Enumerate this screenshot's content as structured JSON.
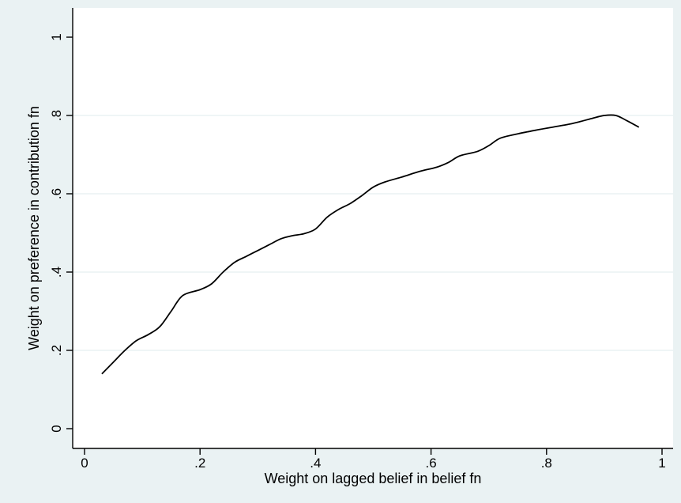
{
  "chart_data": {
    "type": "line",
    "title": "",
    "xlabel": "Weight on lagged belief in belief fn",
    "ylabel": "Weight on preference in contribution fn",
    "xlim": [
      0,
      1
    ],
    "ylim": [
      0,
      1
    ],
    "x_ticks": [
      {
        "value": 0,
        "label": "0"
      },
      {
        "value": 0.2,
        "label": ".2"
      },
      {
        "value": 0.4,
        "label": ".4"
      },
      {
        "value": 0.6,
        "label": ".6"
      },
      {
        "value": 0.8,
        "label": ".8"
      },
      {
        "value": 1,
        "label": "1"
      }
    ],
    "y_ticks": [
      {
        "value": 0,
        "label": "0"
      },
      {
        "value": 0.2,
        "label": ".2"
      },
      {
        "value": 0.4,
        "label": ".4"
      },
      {
        "value": 0.6,
        "label": ".6"
      },
      {
        "value": 0.8,
        "label": ".8"
      },
      {
        "value": 1,
        "label": "1"
      }
    ],
    "grid": "horizontal",
    "background_color": "#eaf2f3",
    "plot_color": "#ffffff",
    "gridline_color": "#eaf2f3",
    "line_color": "#000000",
    "series": [
      {
        "points": [
          [
            0.03,
            0.14
          ],
          [
            0.05,
            0.17
          ],
          [
            0.07,
            0.2
          ],
          [
            0.09,
            0.225
          ],
          [
            0.11,
            0.24
          ],
          [
            0.13,
            0.26
          ],
          [
            0.15,
            0.3
          ],
          [
            0.17,
            0.34
          ],
          [
            0.2,
            0.355
          ],
          [
            0.22,
            0.37
          ],
          [
            0.24,
            0.4
          ],
          [
            0.26,
            0.425
          ],
          [
            0.28,
            0.44
          ],
          [
            0.3,
            0.455
          ],
          [
            0.32,
            0.47
          ],
          [
            0.34,
            0.485
          ],
          [
            0.36,
            0.493
          ],
          [
            0.38,
            0.498
          ],
          [
            0.4,
            0.51
          ],
          [
            0.42,
            0.54
          ],
          [
            0.44,
            0.56
          ],
          [
            0.46,
            0.575
          ],
          [
            0.48,
            0.595
          ],
          [
            0.5,
            0.617
          ],
          [
            0.52,
            0.63
          ],
          [
            0.55,
            0.643
          ],
          [
            0.58,
            0.657
          ],
          [
            0.61,
            0.668
          ],
          [
            0.63,
            0.68
          ],
          [
            0.65,
            0.697
          ],
          [
            0.68,
            0.708
          ],
          [
            0.7,
            0.723
          ],
          [
            0.72,
            0.742
          ],
          [
            0.75,
            0.753
          ],
          [
            0.78,
            0.762
          ],
          [
            0.81,
            0.77
          ],
          [
            0.84,
            0.778
          ],
          [
            0.86,
            0.785
          ],
          [
            0.88,
            0.793
          ],
          [
            0.9,
            0.8
          ],
          [
            0.92,
            0.8
          ],
          [
            0.94,
            0.786
          ],
          [
            0.96,
            0.77
          ]
        ]
      }
    ]
  }
}
